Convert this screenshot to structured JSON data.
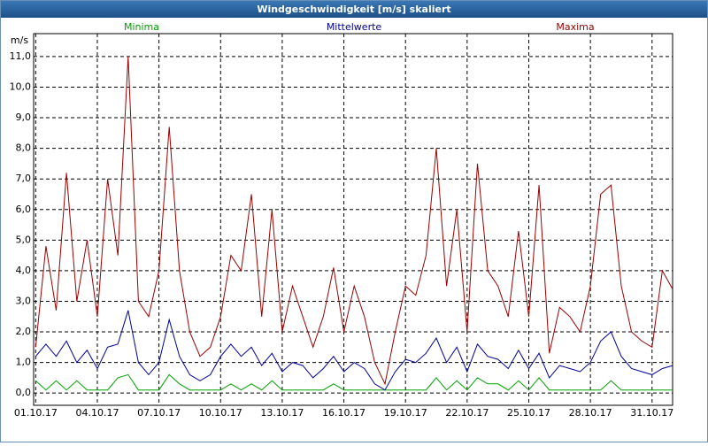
{
  "chart_data": {
    "type": "line",
    "title": "Windgeschwindigkeit [m/s] skaliert",
    "y_label": "m/s",
    "x": [
      0,
      0.5,
      1,
      1.5,
      2,
      2.5,
      3,
      3.5,
      4,
      4.5,
      5,
      5.5,
      6,
      6.5,
      7,
      7.5,
      8,
      8.5,
      9,
      9.5,
      10,
      10.5,
      11,
      11.5,
      12,
      12.5,
      13,
      13.5,
      14,
      14.5,
      15,
      15.5,
      16,
      16.5,
      17,
      17.5,
      18,
      18.5,
      19,
      19.5,
      20,
      20.5,
      21,
      21.5,
      22,
      22.5,
      23,
      23.5,
      24,
      24.5,
      25,
      25.5,
      26,
      26.5,
      27,
      27.5,
      28,
      28.5,
      29,
      29.5,
      30,
      30.5,
      31
    ],
    "xlim": [
      -0.1,
      31
    ],
    "xticks": [
      {
        "value": 0,
        "label": "01.10.17"
      },
      {
        "value": 3,
        "label": "04.10.17"
      },
      {
        "value": 6,
        "label": "07.10.17"
      },
      {
        "value": 9,
        "label": "10.10.17"
      },
      {
        "value": 12,
        "label": "13.10.17"
      },
      {
        "value": 15,
        "label": "16.10.17"
      },
      {
        "value": 18,
        "label": "19.10.17"
      },
      {
        "value": 21,
        "label": "22.10.17"
      },
      {
        "value": 24,
        "label": "25.10.17"
      },
      {
        "value": 27,
        "label": "28.10.17"
      },
      {
        "value": 30,
        "label": "31.10.17"
      }
    ],
    "ylim": [
      -0.4,
      11.75
    ],
    "yticks": [
      {
        "value": 0,
        "label": "0,0"
      },
      {
        "value": 1,
        "label": "1,0"
      },
      {
        "value": 2,
        "label": "2,0"
      },
      {
        "value": 3,
        "label": "3,0"
      },
      {
        "value": 4,
        "label": "4,0"
      },
      {
        "value": 5,
        "label": "5,0"
      },
      {
        "value": 6,
        "label": "6,0"
      },
      {
        "value": 7,
        "label": "7,0"
      },
      {
        "value": 8,
        "label": "8,0"
      },
      {
        "value": 9,
        "label": "9,0"
      },
      {
        "value": 10,
        "label": "10,0"
      },
      {
        "value": 11,
        "label": "11,0"
      }
    ],
    "grid": true,
    "series": [
      {
        "name": "Minima",
        "color": "#00a000",
        "values": [
          0.4,
          0.1,
          0.4,
          0.1,
          0.4,
          0.1,
          0.1,
          0.1,
          0.5,
          0.6,
          0.1,
          0.1,
          0.1,
          0.6,
          0.3,
          0.1,
          0.1,
          0.1,
          0.1,
          0.3,
          0.1,
          0.3,
          0.1,
          0.4,
          0.1,
          0.1,
          0.1,
          0.1,
          0.1,
          0.3,
          0.1,
          0.1,
          0.1,
          0.1,
          0.1,
          0.1,
          0.1,
          0.1,
          0.1,
          0.5,
          0.1,
          0.4,
          0.1,
          0.5,
          0.3,
          0.3,
          0.1,
          0.4,
          0.1,
          0.5,
          0.1,
          0.1,
          0.1,
          0.1,
          0.1,
          0.1,
          0.4,
          0.1,
          0.1,
          0.1,
          0.1,
          0.1,
          0.1
        ]
      },
      {
        "name": "Mittelwerte",
        "color": "#000099",
        "values": [
          1.2,
          1.6,
          1.2,
          1.7,
          1.0,
          1.4,
          0.8,
          1.5,
          1.6,
          2.7,
          1.0,
          0.6,
          1.0,
          2.4,
          1.2,
          0.6,
          0.4,
          0.6,
          1.2,
          1.6,
          1.2,
          1.5,
          0.9,
          1.3,
          0.7,
          1.0,
          0.9,
          0.5,
          0.8,
          1.2,
          0.7,
          1.0,
          0.8,
          0.3,
          0.1,
          0.7,
          1.1,
          1.0,
          1.3,
          1.8,
          1.0,
          1.5,
          0.7,
          1.6,
          1.2,
          1.1,
          0.8,
          1.4,
          0.8,
          1.3,
          0.5,
          0.9,
          0.8,
          0.7,
          1.0,
          1.7,
          2.0,
          1.2,
          0.8,
          0.7,
          0.6,
          0.8,
          0.9
        ]
      },
      {
        "name": "Maxima",
        "color": "#990000",
        "values": [
          1.5,
          4.8,
          2.7,
          7.2,
          3.0,
          5.0,
          2.5,
          7.0,
          4.5,
          11.0,
          3.0,
          2.5,
          4.0,
          8.7,
          4.0,
          2.0,
          1.2,
          1.5,
          2.5,
          4.5,
          4.0,
          6.5,
          2.5,
          6.0,
          2.0,
          3.5,
          2.5,
          1.5,
          2.5,
          4.1,
          2.0,
          3.5,
          2.5,
          1.0,
          0.3,
          2.0,
          3.5,
          3.2,
          4.5,
          8.0,
          3.5,
          6.0,
          2.0,
          7.5,
          4.0,
          3.5,
          2.5,
          5.3,
          2.5,
          6.8,
          1.3,
          2.8,
          2.5,
          2.0,
          3.5,
          6.5,
          6.8,
          3.5,
          2.0,
          1.7,
          1.5,
          4.0,
          3.4
        ]
      }
    ]
  }
}
